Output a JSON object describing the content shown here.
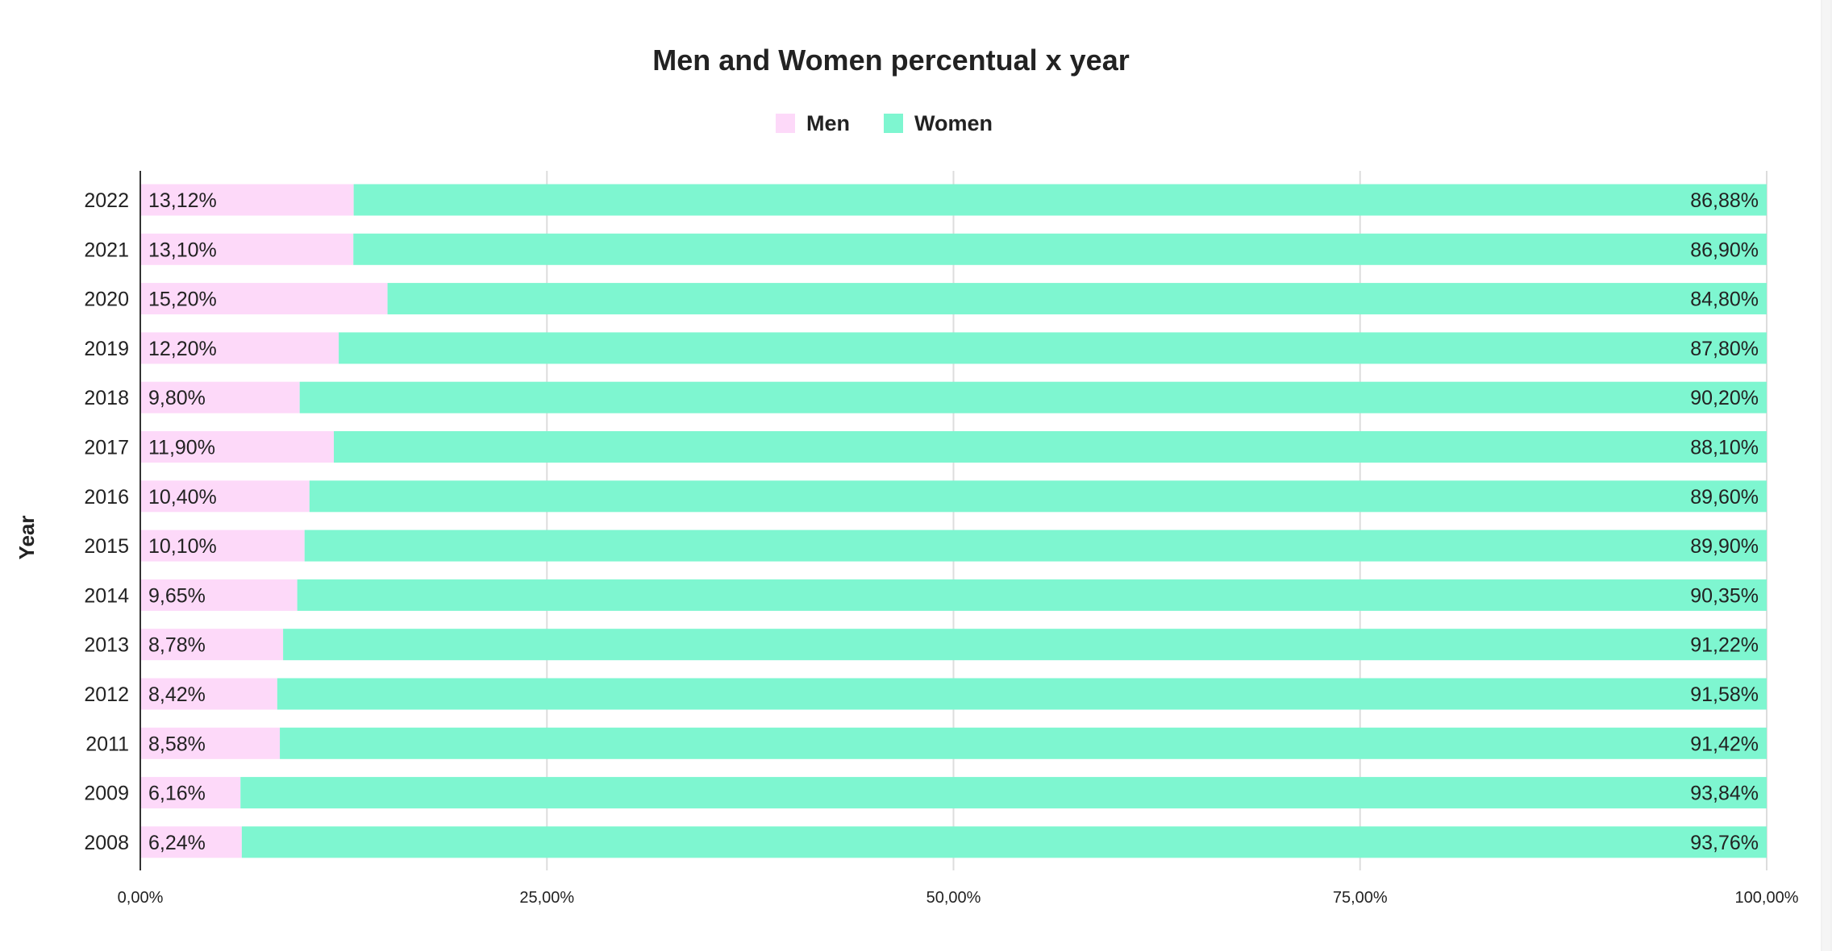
{
  "chart_data": {
    "type": "bar",
    "orientation": "horizontal",
    "stacked": true,
    "normalized": true,
    "title": "Men and Women percentual x year",
    "ylabel": "Year",
    "xlabel": "",
    "xlim": [
      0,
      100
    ],
    "x_ticks": [
      0,
      25,
      50,
      75,
      100
    ],
    "x_tick_labels": [
      "0,00%",
      "25,00%",
      "50,00%",
      "75,00%",
      "100,00%"
    ],
    "grid": true,
    "legend_position": "top-center",
    "categories": [
      "2022",
      "2021",
      "2020",
      "2019",
      "2018",
      "2017",
      "2016",
      "2015",
      "2014",
      "2013",
      "2012",
      "2011",
      "2009",
      "2008"
    ],
    "series": [
      {
        "name": "Men",
        "color": "#fdd9f9",
        "values": [
          13.12,
          13.1,
          15.2,
          12.2,
          9.8,
          11.9,
          10.4,
          10.1,
          9.65,
          8.78,
          8.42,
          8.58,
          6.16,
          6.24
        ],
        "labels": [
          "13,12%",
          "13,10%",
          "15,20%",
          "12,20%",
          "9,80%",
          "11,90%",
          "10,40%",
          "10,10%",
          "9,65%",
          "8,78%",
          "8,42%",
          "8,58%",
          "6,16%",
          "6,24%"
        ]
      },
      {
        "name": "Women",
        "color": "#7ef6d0",
        "values": [
          86.88,
          86.9,
          84.8,
          87.8,
          90.2,
          88.1,
          89.6,
          89.9,
          90.35,
          91.22,
          91.58,
          91.42,
          93.84,
          93.76
        ],
        "labels": [
          "86,88%",
          "86,90%",
          "84,80%",
          "87,80%",
          "90,20%",
          "88,10%",
          "89,60%",
          "89,90%",
          "90,35%",
          "91,22%",
          "91,58%",
          "91,42%",
          "93,84%",
          "93,76%"
        ]
      }
    ]
  }
}
